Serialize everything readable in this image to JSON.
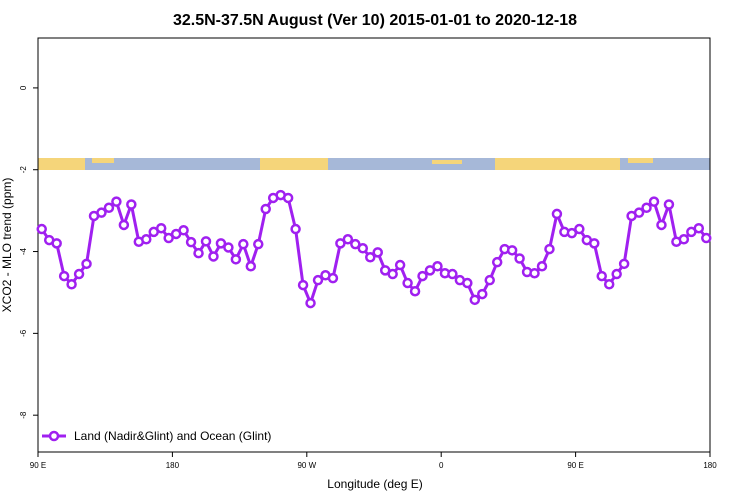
{
  "chart_data": {
    "type": "line",
    "title": "32.5N-37.5N August (Ver 10)   2015-01-01 to 2020-12-18",
    "x_label": "Longitude (deg E)",
    "y_label": "XCO2 - MLO trend (ppm)",
    "xlim": [
      90,
      540
    ],
    "ylim": [
      -8.9,
      1.22
    ],
    "xticks": [
      {
        "value": 90,
        "label": "90 E"
      },
      {
        "value": 180,
        "label": "180"
      },
      {
        "value": 270,
        "label": "90 W"
      },
      {
        "value": 360,
        "label": "0"
      },
      {
        "value": 450,
        "label": "90 E"
      },
      {
        "value": 540,
        "label": "180"
      }
    ],
    "yticks": [
      0,
      -2,
      -4,
      -6,
      -8
    ],
    "legend": "bottom-left",
    "x": [
      92.5,
      97.5,
      102.5,
      107.5,
      112.5,
      117.5,
      122.5,
      127.5,
      132.5,
      137.5,
      142.5,
      147.5,
      152.5,
      157.5,
      162.5,
      167.5,
      172.5,
      177.5,
      182.5,
      187.5,
      192.5,
      197.5,
      202.5,
      207.5,
      212.5,
      217.5,
      222.5,
      227.5,
      232.5,
      237.5,
      242.5,
      247.5,
      252.5,
      257.5,
      262.5,
      267.5,
      272.5,
      277.5,
      282.5,
      287.5,
      292.5,
      297.5,
      302.5,
      307.5,
      312.5,
      317.5,
      322.5,
      327.5,
      332.5,
      337.5,
      342.5,
      347.5,
      352.5,
      357.5,
      362.5,
      367.5,
      372.5,
      377.5,
      382.5,
      387.5,
      392.5,
      397.5,
      402.5,
      407.5,
      412.5,
      417.5,
      422.5,
      427.5,
      432.5,
      437.5,
      442.5,
      447.5,
      452.5,
      457.5,
      462.5,
      467.5,
      472.5,
      477.5,
      482.5,
      487.5,
      492.5,
      497.5,
      502.5,
      507.5,
      512.5,
      517.5,
      522.5,
      527.5,
      532.5,
      537.5
    ],
    "series": [
      {
        "name": "Land (Nadir&Glint) and Ocean (Glint)",
        "color": "#a020f0",
        "values": [
          -3.45,
          -3.72,
          -3.8,
          -4.6,
          -4.8,
          -4.55,
          -4.3,
          -3.13,
          -3.05,
          -2.93,
          -2.78,
          -3.35,
          -2.85,
          -3.76,
          -3.7,
          -3.52,
          -3.43,
          -3.67,
          -3.57,
          -3.48,
          -3.77,
          -4.04,
          -3.75,
          -4.12,
          -3.8,
          -3.9,
          -4.19,
          -3.82,
          -4.36,
          -3.82,
          -2.96,
          -2.69,
          -2.62,
          -2.69,
          -3.45,
          -4.82,
          -5.26,
          -4.7,
          -4.58,
          -4.65,
          -3.8,
          -3.7,
          -3.82,
          -3.92,
          -4.14,
          -4.02,
          -4.46,
          -4.55,
          -4.33,
          -4.77,
          -4.97,
          -4.6,
          -4.46,
          -4.36,
          -4.53,
          -4.55,
          -4.7,
          -4.77,
          -5.18,
          -5.04,
          -4.7,
          -4.26,
          -3.94,
          -3.97,
          -4.17,
          -4.5,
          -4.53,
          -4.36,
          -3.94,
          -3.08,
          -3.52,
          -3.55,
          -3.45,
          -3.72,
          -3.8,
          -4.6,
          -4.8,
          -4.55,
          -4.3,
          -3.13,
          -3.05,
          -2.93,
          -2.78,
          -3.35,
          -2.85,
          -3.76,
          -3.7,
          -3.52,
          -3.43,
          -3.67
        ]
      }
    ]
  }
}
